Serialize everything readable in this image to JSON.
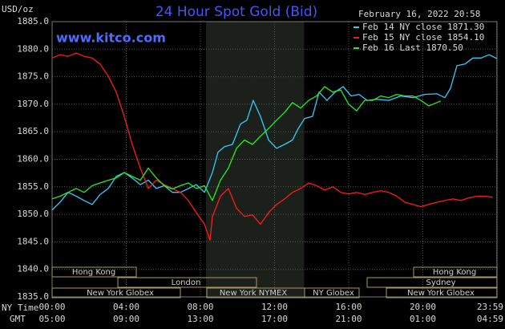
{
  "chart_data": {
    "type": "line",
    "title": "24 Hour Spot Gold (Bid)",
    "subtitle": "www.kitco.com",
    "timestamp": "February 16, 2022 20:58",
    "y_label": "USD/oz",
    "x_label": "NY Time",
    "x2_label": "GMT",
    "xlim": [
      0,
      24
    ],
    "xticks": [
      {
        "value": 0,
        "label": "00:00"
      },
      {
        "value": 4,
        "label": "04:00"
      },
      {
        "value": 8,
        "label": "08:00"
      },
      {
        "value": 12,
        "label": "12:00"
      },
      {
        "value": 16,
        "label": "16:00"
      },
      {
        "value": 20,
        "label": "20:00"
      },
      {
        "value": 23.98,
        "label": "23:59"
      }
    ],
    "x2ticks": [
      {
        "value": 0,
        "label": "05:00"
      },
      {
        "value": 4,
        "label": "09:00"
      },
      {
        "value": 8,
        "label": "13:00"
      },
      {
        "value": 12,
        "label": "17:00"
      },
      {
        "value": 16,
        "label": "21:00"
      },
      {
        "value": 20,
        "label": "01:00"
      },
      {
        "value": 23.98,
        "label": "04:59"
      }
    ],
    "ylim": [
      1835,
      1885
    ],
    "yticks": [
      {
        "value": 1835,
        "label": "1835.0"
      },
      {
        "value": 1840,
        "label": "1840.0"
      },
      {
        "value": 1845,
        "label": "1845.0"
      },
      {
        "value": 1850,
        "label": "1850.0"
      },
      {
        "value": 1855,
        "label": "1855.0"
      },
      {
        "value": 1860,
        "label": "1860.0"
      },
      {
        "value": 1865,
        "label": "1865.0"
      },
      {
        "value": 1870,
        "label": "1870.0"
      },
      {
        "value": 1875,
        "label": "1875.0"
      },
      {
        "value": 1880,
        "label": "1880.0"
      },
      {
        "value": 1885,
        "label": "1885.0"
      }
    ],
    "grid": true,
    "sessions": [
      "Hong Kong",
      "London",
      "New York Globex",
      "New York NYMEX",
      "NY Globex",
      "New York Globex",
      "Sydney",
      "Hong Kong"
    ],
    "series": [
      {
        "name": "Feb 14 NY close 1871.30",
        "color": "#33ccff",
        "x": [
          0,
          0.43,
          0.86,
          1.3,
          1.73,
          2.16,
          2.59,
          3.03,
          3.46,
          3.89,
          4.32,
          4.76,
          5.19,
          5.62,
          6.05,
          6.49,
          6.92,
          7.35,
          7.78,
          8.22,
          8.65,
          8.95,
          9.3,
          9.73,
          10.16,
          10.51,
          10.85,
          11.24,
          11.68,
          12.11,
          12.54,
          12.97,
          13.28,
          13.62,
          14.05,
          14.4,
          14.83,
          15.26,
          15.7,
          16.13,
          16.56,
          17.0,
          17.51,
          18.16,
          18.81,
          19.46,
          20.11,
          20.76,
          21.19,
          21.49,
          21.84,
          22.27,
          22.7,
          23.14,
          23.57,
          24.0
        ],
        "values": [
          1850.8,
          1852.2,
          1854.0,
          1853.3,
          1852.5,
          1851.8,
          1853.6,
          1854.7,
          1856.9,
          1857.6,
          1856.6,
          1855.4,
          1856.2,
          1854.7,
          1855.2,
          1854.0,
          1854.0,
          1854.7,
          1855.4,
          1854.0,
          1857.6,
          1861.3,
          1862.3,
          1862.7,
          1866.4,
          1867.1,
          1870.7,
          1867.8,
          1863.5,
          1862.0,
          1862.7,
          1863.5,
          1865.6,
          1867.4,
          1867.8,
          1872.2,
          1870.7,
          1872.2,
          1873.2,
          1871.5,
          1871.8,
          1870.7,
          1870.9,
          1870.7,
          1871.5,
          1871.2,
          1871.8,
          1871.9,
          1871.2,
          1872.9,
          1877.0,
          1877.3,
          1878.4,
          1878.4,
          1879.0,
          1878.3
        ]
      },
      {
        "name": "Feb 15 NY close 1854.10",
        "color": "#ff1a1a",
        "x": [
          0,
          0.43,
          0.86,
          1.3,
          1.73,
          2.16,
          2.59,
          3.03,
          3.46,
          3.89,
          4.32,
          4.76,
          5.19,
          5.62,
          6.05,
          6.49,
          6.92,
          7.35,
          7.78,
          8.22,
          8.52,
          8.65,
          9.08,
          9.51,
          9.95,
          10.38,
          10.81,
          11.24,
          11.68,
          12.11,
          12.54,
          12.97,
          13.41,
          13.84,
          14.27,
          14.7,
          15.14,
          15.57,
          16.0,
          16.43,
          16.86,
          17.3,
          17.73,
          18.16,
          18.59,
          19.03,
          19.46,
          19.89,
          20.32,
          20.76,
          21.19,
          21.62,
          22.05,
          22.49,
          22.92,
          23.35,
          23.78
        ],
        "values": [
          1878.4,
          1879.0,
          1878.7,
          1879.3,
          1878.7,
          1878.4,
          1877.3,
          1875.1,
          1872.2,
          1867.8,
          1862.7,
          1858.4,
          1854.7,
          1856.2,
          1855.4,
          1854.7,
          1854.0,
          1852.5,
          1850.3,
          1848.2,
          1845.3,
          1849.6,
          1853.3,
          1854.7,
          1851.1,
          1849.6,
          1849.9,
          1848.2,
          1850.3,
          1851.8,
          1852.8,
          1854.0,
          1854.7,
          1855.7,
          1855.2,
          1854.4,
          1855.0,
          1854.0,
          1853.7,
          1854.0,
          1853.6,
          1854.0,
          1854.3,
          1854.0,
          1853.3,
          1852.2,
          1851.8,
          1851.4,
          1851.8,
          1852.2,
          1852.5,
          1852.8,
          1852.5,
          1853.0,
          1853.3,
          1853.3,
          1853.1
        ]
      },
      {
        "name": "Feb 16 Last 1870.50",
        "color": "#22ee22",
        "x": [
          0,
          0.43,
          0.86,
          1.3,
          1.73,
          2.16,
          2.59,
          3.03,
          3.46,
          3.89,
          4.32,
          4.76,
          5.19,
          5.62,
          6.05,
          6.49,
          6.92,
          7.35,
          7.78,
          8.22,
          8.65,
          9.08,
          9.51,
          9.95,
          10.38,
          10.81,
          11.24,
          11.68,
          12.11,
          12.54,
          12.97,
          13.41,
          13.84,
          14.27,
          14.7,
          15.14,
          15.57,
          16.0,
          16.43,
          16.86,
          17.3,
          17.73,
          18.16,
          18.59,
          19.03,
          19.46,
          19.89,
          20.32,
          20.76,
          20.97
        ],
        "values": [
          1852.8,
          1853.3,
          1854.0,
          1854.7,
          1854.0,
          1855.2,
          1855.7,
          1856.2,
          1856.6,
          1857.6,
          1856.9,
          1856.2,
          1858.4,
          1856.6,
          1855.2,
          1854.6,
          1855.2,
          1855.7,
          1854.7,
          1855.2,
          1852.5,
          1856.2,
          1858.4,
          1862.0,
          1863.5,
          1862.7,
          1864.2,
          1865.6,
          1867.1,
          1868.5,
          1870.3,
          1869.3,
          1870.7,
          1871.5,
          1873.2,
          1872.2,
          1872.6,
          1870.0,
          1868.8,
          1870.7,
          1870.7,
          1871.5,
          1871.2,
          1871.8,
          1871.5,
          1871.5,
          1870.7,
          1869.7,
          1870.3,
          1870.6
        ]
      }
    ]
  }
}
